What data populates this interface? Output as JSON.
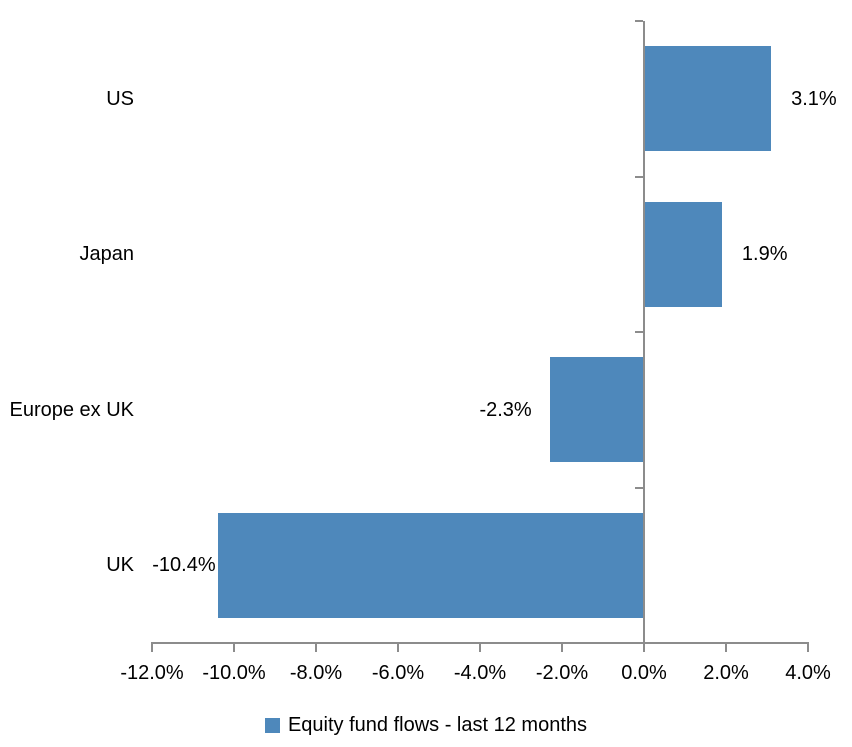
{
  "chart_data": {
    "type": "bar",
    "orientation": "horizontal",
    "title": "",
    "categories": [
      "US",
      "Japan",
      "Europe ex UK",
      "UK"
    ],
    "values": [
      3.1,
      1.9,
      -2.3,
      -10.4
    ],
    "value_labels": [
      "3.1%",
      "1.9%",
      "-2.3%",
      "-10.4%"
    ],
    "xlim": [
      -12,
      4
    ],
    "x_ticks": [
      -12,
      -10,
      -8,
      -6,
      -4,
      -2,
      0,
      2,
      4
    ],
    "x_tick_labels": [
      "-12.0%",
      "-10.0%",
      "-8.0%",
      "-6.0%",
      "-4.0%",
      "-2.0%",
      "0.0%",
      "2.0%",
      "4.0%"
    ],
    "grid": false,
    "legend": {
      "label": "Equity fund flows - last 12 months",
      "position": "bottom-center"
    },
    "bar_color": "#4E88BB",
    "axis_color": "#8C8C8C",
    "text_color": "#000000"
  }
}
